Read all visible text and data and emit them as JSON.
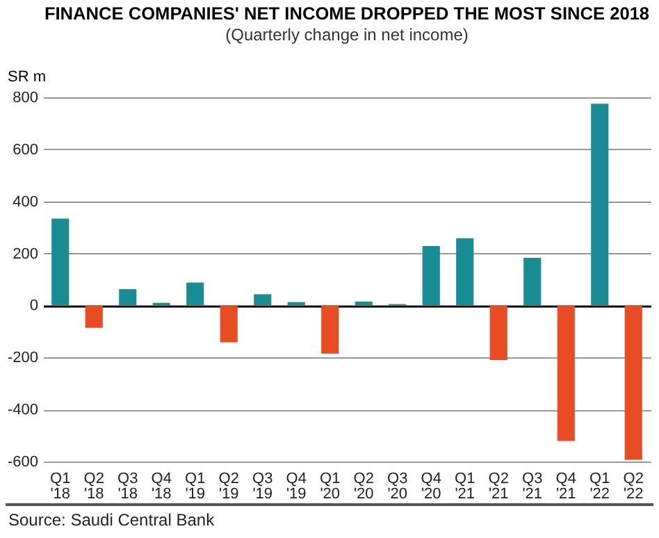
{
  "chart_data": {
    "type": "bar",
    "title": "FINANCE COMPANIES' NET INCOME DROPPED THE MOST SINCE 2018",
    "subtitle": "(Quarterly change in net income)",
    "ylabel": "SR m",
    "categories": [
      "Q1 '18",
      "Q2 '18",
      "Q3 '18",
      "Q4 '18",
      "Q1 '19",
      "Q2 '19",
      "Q3 '19",
      "Q4 '19",
      "Q1 '20",
      "Q2 '20",
      "Q3 '20",
      "Q4 '20",
      "Q1 '21",
      "Q2 '21",
      "Q3 '21",
      "Q4 '21",
      "Q1 '22",
      "Q2 '22"
    ],
    "values": [
      334,
      -86,
      63,
      10,
      88,
      -142,
      43,
      13,
      -185,
      15,
      5,
      228,
      258,
      -210,
      183,
      -521,
      775,
      -593
    ],
    "colors": [
      "#1a8c94",
      "#e84c22",
      "#1a8c94",
      "#1a8c94",
      "#1a8c94",
      "#e84c22",
      "#1a8c94",
      "#1a8c94",
      "#e84c22",
      "#1a8c94",
      "#1a8c94",
      "#1a8c94",
      "#1a8c94",
      "#e84c22",
      "#1a8c94",
      "#e84c22",
      "#1a8c94",
      "#e84c22"
    ],
    "ylim": [
      -600,
      800
    ],
    "yticks": [
      -600,
      -400,
      -200,
      0,
      200,
      400,
      600,
      800
    ],
    "grid": "y",
    "annotations": [
      "Source: Saudi Central Bank"
    ]
  }
}
